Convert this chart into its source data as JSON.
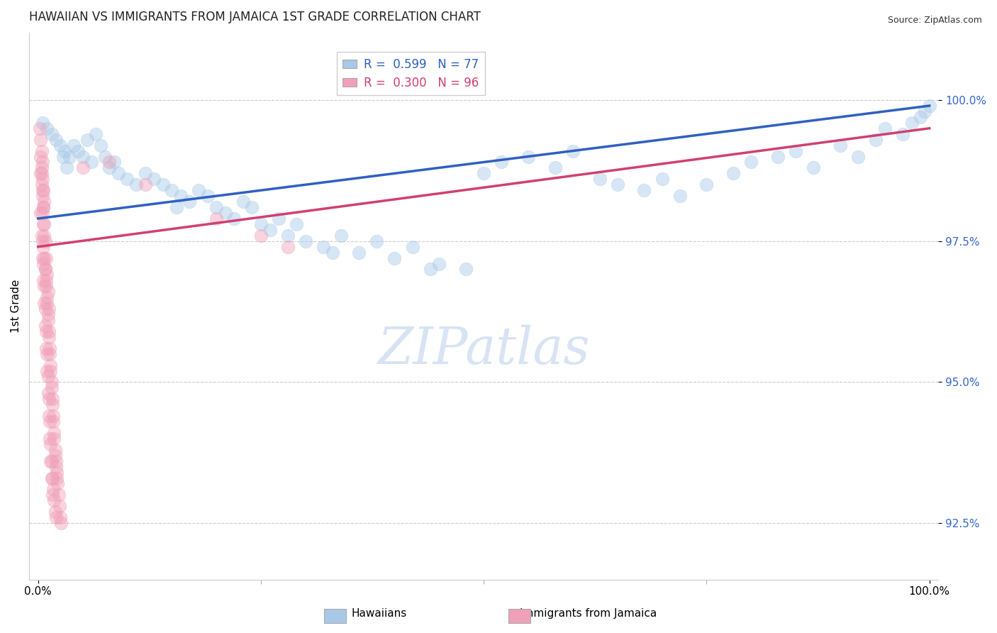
{
  "title": "HAWAIIAN VS IMMIGRANTS FROM JAMAICA 1ST GRADE CORRELATION CHART",
  "source_text": "Source: ZipAtlas.com",
  "xlabel": "",
  "ylabel": "1st Grade",
  "xlim": [
    -1.0,
    101.0
  ],
  "ylim": [
    91.5,
    101.2
  ],
  "yticks": [
    92.5,
    95.0,
    97.5,
    100.0
  ],
  "ytick_labels": [
    "92.5%",
    "95.0%",
    "97.5%",
    "100.0%"
  ],
  "xtick_positions": [
    0,
    100
  ],
  "xtick_labels": [
    "0.0%",
    "100.0%"
  ],
  "legend_text_blue": "R =  0.599   N = 77",
  "legend_text_pink": "R =  0.300   N = 96",
  "blue_color": "#A8C8E8",
  "pink_color": "#F0A0B8",
  "blue_line_color": "#3060C0",
  "pink_line_color": "#D04070",
  "hawaiians_label": "Hawaiians",
  "jamaica_label": "Immigrants from Jamaica",
  "blue_scatter": [
    [
      0.5,
      99.6
    ],
    [
      1.0,
      99.5
    ],
    [
      1.5,
      99.4
    ],
    [
      2.0,
      99.3
    ],
    [
      2.5,
      99.2
    ],
    [
      3.0,
      99.1
    ],
    [
      3.5,
      99.0
    ],
    [
      4.0,
      99.2
    ],
    [
      4.5,
      99.1
    ],
    [
      5.0,
      99.0
    ],
    [
      5.5,
      99.3
    ],
    [
      6.0,
      98.9
    ],
    [
      6.5,
      99.4
    ],
    [
      7.0,
      99.2
    ],
    [
      7.5,
      99.0
    ],
    [
      8.0,
      98.8
    ],
    [
      9.0,
      98.7
    ],
    [
      10.0,
      98.6
    ],
    [
      11.0,
      98.5
    ],
    [
      12.0,
      98.7
    ],
    [
      13.0,
      98.6
    ],
    [
      14.0,
      98.5
    ],
    [
      15.0,
      98.4
    ],
    [
      16.0,
      98.3
    ],
    [
      17.0,
      98.2
    ],
    [
      18.0,
      98.4
    ],
    [
      19.0,
      98.3
    ],
    [
      20.0,
      98.1
    ],
    [
      21.0,
      98.0
    ],
    [
      22.0,
      97.9
    ],
    [
      23.0,
      98.2
    ],
    [
      24.0,
      98.1
    ],
    [
      25.0,
      97.8
    ],
    [
      26.0,
      97.7
    ],
    [
      27.0,
      97.9
    ],
    [
      28.0,
      97.6
    ],
    [
      29.0,
      97.8
    ],
    [
      30.0,
      97.5
    ],
    [
      32.0,
      97.4
    ],
    [
      34.0,
      97.6
    ],
    [
      36.0,
      97.3
    ],
    [
      38.0,
      97.5
    ],
    [
      40.0,
      97.2
    ],
    [
      42.0,
      97.4
    ],
    [
      45.0,
      97.1
    ],
    [
      48.0,
      97.0
    ],
    [
      50.0,
      98.7
    ],
    [
      52.0,
      98.9
    ],
    [
      55.0,
      99.0
    ],
    [
      58.0,
      98.8
    ],
    [
      60.0,
      99.1
    ],
    [
      63.0,
      98.6
    ],
    [
      65.0,
      98.5
    ],
    [
      68.0,
      98.4
    ],
    [
      70.0,
      98.6
    ],
    [
      72.0,
      98.3
    ],
    [
      75.0,
      98.5
    ],
    [
      78.0,
      98.7
    ],
    [
      80.0,
      98.9
    ],
    [
      83.0,
      99.0
    ],
    [
      85.0,
      99.1
    ],
    [
      87.0,
      98.8
    ],
    [
      90.0,
      99.2
    ],
    [
      92.0,
      99.0
    ],
    [
      94.0,
      99.3
    ],
    [
      95.0,
      99.5
    ],
    [
      97.0,
      99.4
    ],
    [
      98.0,
      99.6
    ],
    [
      99.0,
      99.7
    ],
    [
      99.5,
      99.8
    ],
    [
      100.0,
      99.9
    ],
    [
      2.8,
      99.0
    ],
    [
      3.2,
      98.8
    ],
    [
      8.5,
      98.9
    ],
    [
      15.5,
      98.1
    ],
    [
      33.0,
      97.3
    ],
    [
      44.0,
      97.0
    ]
  ],
  "pink_scatter": [
    [
      0.2,
      99.5
    ],
    [
      0.3,
      99.3
    ],
    [
      0.4,
      99.1
    ],
    [
      0.5,
      98.9
    ],
    [
      0.3,
      98.7
    ],
    [
      0.4,
      98.5
    ],
    [
      0.5,
      98.3
    ],
    [
      0.6,
      98.1
    ],
    [
      0.4,
      98.8
    ],
    [
      0.5,
      98.6
    ],
    [
      0.6,
      98.4
    ],
    [
      0.7,
      98.2
    ],
    [
      0.5,
      98.0
    ],
    [
      0.6,
      97.8
    ],
    [
      0.7,
      97.6
    ],
    [
      0.3,
      99.0
    ],
    [
      0.4,
      98.7
    ],
    [
      0.5,
      98.4
    ],
    [
      0.6,
      98.1
    ],
    [
      0.7,
      97.8
    ],
    [
      0.8,
      97.5
    ],
    [
      0.9,
      97.2
    ],
    [
      1.0,
      96.9
    ],
    [
      1.1,
      96.6
    ],
    [
      1.2,
      96.3
    ],
    [
      0.8,
      97.0
    ],
    [
      0.9,
      96.7
    ],
    [
      1.0,
      96.4
    ],
    [
      1.1,
      96.1
    ],
    [
      1.2,
      95.8
    ],
    [
      1.3,
      95.5
    ],
    [
      1.4,
      95.2
    ],
    [
      1.5,
      94.9
    ],
    [
      1.6,
      94.6
    ],
    [
      1.7,
      94.3
    ],
    [
      1.8,
      94.0
    ],
    [
      1.9,
      93.7
    ],
    [
      2.0,
      93.5
    ],
    [
      2.1,
      93.3
    ],
    [
      0.6,
      97.4
    ],
    [
      0.7,
      97.2
    ],
    [
      0.8,
      97.0
    ],
    [
      0.9,
      96.8
    ],
    [
      1.0,
      96.5
    ],
    [
      1.1,
      96.2
    ],
    [
      1.2,
      95.9
    ],
    [
      1.3,
      95.6
    ],
    [
      1.4,
      95.3
    ],
    [
      1.5,
      95.0
    ],
    [
      1.6,
      94.7
    ],
    [
      1.7,
      94.4
    ],
    [
      1.8,
      94.1
    ],
    [
      1.9,
      93.8
    ],
    [
      2.0,
      93.6
    ],
    [
      2.1,
      93.4
    ],
    [
      2.2,
      93.2
    ],
    [
      2.3,
      93.0
    ],
    [
      2.4,
      92.8
    ],
    [
      2.5,
      92.6
    ],
    [
      2.6,
      92.5
    ],
    [
      0.5,
      97.5
    ],
    [
      0.6,
      97.1
    ],
    [
      0.7,
      96.7
    ],
    [
      0.8,
      96.3
    ],
    [
      0.9,
      95.9
    ],
    [
      1.0,
      95.5
    ],
    [
      1.1,
      95.1
    ],
    [
      1.2,
      94.7
    ],
    [
      1.3,
      94.3
    ],
    [
      1.4,
      93.9
    ],
    [
      1.5,
      93.6
    ],
    [
      1.6,
      93.3
    ],
    [
      1.7,
      93.1
    ],
    [
      1.8,
      92.9
    ],
    [
      1.9,
      92.7
    ],
    [
      2.0,
      92.6
    ],
    [
      0.3,
      98.0
    ],
    [
      0.4,
      97.6
    ],
    [
      0.5,
      97.2
    ],
    [
      0.6,
      96.8
    ],
    [
      0.7,
      96.4
    ],
    [
      0.8,
      96.0
    ],
    [
      0.9,
      95.6
    ],
    [
      1.0,
      95.2
    ],
    [
      1.1,
      94.8
    ],
    [
      1.2,
      94.4
    ],
    [
      1.3,
      94.0
    ],
    [
      1.4,
      93.6
    ],
    [
      1.5,
      93.3
    ],
    [
      1.6,
      93.0
    ],
    [
      5.0,
      98.8
    ],
    [
      8.0,
      98.9
    ],
    [
      12.0,
      98.5
    ],
    [
      20.0,
      97.9
    ],
    [
      25.0,
      97.6
    ],
    [
      28.0,
      97.4
    ]
  ],
  "blue_line": [
    [
      0,
      97.9
    ],
    [
      100,
      99.9
    ]
  ],
  "pink_line": [
    [
      0,
      97.4
    ],
    [
      100,
      99.5
    ]
  ],
  "background_color": "#ffffff",
  "grid_color": "#cccccc",
  "marker_size": 180,
  "marker_alpha": 0.45,
  "watermark_text": "ZIPatlas",
  "watermark_color": "#C8D8F0"
}
